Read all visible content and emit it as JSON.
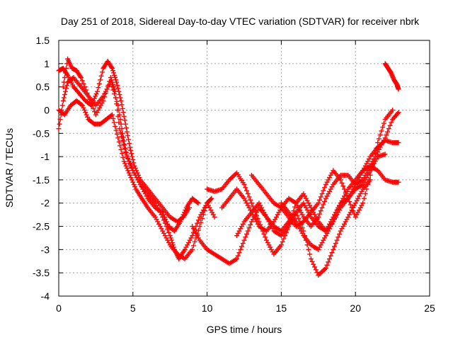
{
  "chart_data": {
    "type": "scatter",
    "title": "Day 251 of 2018, Sidereal Day-to-day VTEC variation (SDTVAR) for receiver nbrk",
    "xlabel": "GPS time / hours",
    "ylabel": "SDTVAR / TECUs",
    "xlim": [
      0,
      25
    ],
    "ylim": [
      -4,
      1.5
    ],
    "xticks": [
      0,
      5,
      10,
      15,
      20,
      25
    ],
    "xtick_labels": [
      "0",
      "5",
      "10",
      "15",
      "20",
      "25"
    ],
    "yticks": [
      -4,
      -3.5,
      -3,
      -2.5,
      -2,
      -1.5,
      -1,
      -0.5,
      0,
      0.5,
      1,
      1.5
    ],
    "ytick_labels": [
      "-4",
      "-3.5",
      "-3",
      "-2.5",
      "-2",
      "-1.5",
      "-1",
      "-0.5",
      "0",
      "0.5",
      "1",
      "1.5"
    ],
    "grid": true,
    "marker": "+",
    "color": "#ff0000",
    "series": [
      {
        "x": [
          0.0,
          0.3,
          0.6,
          1.0,
          1.4,
          1.8,
          2.2,
          2.6,
          3.0,
          3.3,
          3.6,
          3.9,
          4.2,
          4.5,
          4.8,
          5.1,
          5.5,
          6.0,
          6.5,
          7.0,
          7.5,
          8.0,
          8.4,
          8.8
        ],
        "y": [
          0.85,
          0.9,
          0.75,
          0.5,
          0.35,
          0.2,
          0.1,
          0.4,
          0.9,
          1.05,
          0.9,
          0.6,
          0.2,
          -0.3,
          -0.8,
          -1.2,
          -1.5,
          -1.7,
          -1.9,
          -2.1,
          -2.3,
          -2.4,
          -2.3,
          -2.1
        ]
      },
      {
        "x": [
          0.0,
          0.3,
          0.6,
          1.0,
          1.5,
          2.0,
          2.5,
          3.0,
          3.5,
          4.0,
          4.3,
          4.6,
          5.0,
          5.5,
          6.0,
          6.5,
          7.0,
          7.5,
          7.8,
          8.1,
          8.5,
          9.0,
          9.5,
          10.0,
          10.5
        ],
        "y": [
          -0.4,
          0.2,
          0.6,
          0.7,
          0.5,
          0.3,
          0.1,
          0.3,
          0.6,
          0.1,
          -0.5,
          -1.0,
          -1.3,
          -1.6,
          -1.8,
          -2.0,
          -2.3,
          -2.7,
          -3.0,
          -3.2,
          -3.0,
          -2.7,
          -2.3,
          -2.0,
          -2.3
        ]
      },
      {
        "x": [
          0.0,
          0.4,
          0.8,
          1.2,
          1.6,
          2.0,
          2.4,
          2.8,
          3.2,
          3.6,
          4.0,
          4.4,
          4.8,
          5.2,
          5.6,
          6.0,
          6.5,
          7.0,
          7.5,
          8.0,
          8.5,
          9.0,
          9.5,
          10.0,
          10.3
        ],
        "y": [
          0.0,
          -0.1,
          0.1,
          0.2,
          0.1,
          -0.2,
          -0.3,
          -0.3,
          -0.2,
          -0.1,
          -0.6,
          -1.1,
          -1.4,
          -1.7,
          -1.9,
          -2.1,
          -2.3,
          -2.6,
          -2.9,
          -3.1,
          -3.2,
          -3.0,
          -2.5,
          -2.0,
          -1.9
        ]
      },
      {
        "x": [
          0.3,
          0.6,
          0.9,
          1.2,
          1.5,
          2.0,
          2.5,
          3.0,
          3.5,
          3.8,
          4.1,
          4.5,
          5.0,
          5.5,
          6.0,
          6.5,
          7.0,
          7.4,
          7.8,
          8.2,
          8.6,
          9.0,
          9.4
        ],
        "y": [
          0.5,
          1.1,
          0.9,
          0.85,
          0.7,
          0.3,
          -0.1,
          0.2,
          0.7,
          0.4,
          -0.4,
          -0.9,
          -1.3,
          -1.6,
          -1.9,
          -2.1,
          -2.2,
          -2.5,
          -2.6,
          -2.4,
          -2.1,
          -1.9,
          -2.0
        ]
      },
      {
        "x": [
          9.0,
          9.5,
          10.0,
          10.5,
          11.0,
          11.5,
          12.0,
          12.5,
          13.0,
          13.5,
          14.0,
          14.5,
          15.0,
          15.5,
          16.0,
          16.5,
          17.0,
          17.5,
          18.0,
          18.5,
          19.0,
          19.5,
          20.0,
          20.5,
          21.0
        ],
        "y": [
          -2.5,
          -2.8,
          -3.0,
          -3.1,
          -3.2,
          -3.3,
          -3.2,
          -2.8,
          -2.4,
          -2.1,
          -2.3,
          -2.5,
          -2.6,
          -2.4,
          -2.2,
          -2.6,
          -3.2,
          -3.55,
          -3.4,
          -3.0,
          -2.6,
          -2.3,
          -2.0,
          -1.7,
          -1.5
        ]
      },
      {
        "x": [
          10.0,
          10.5,
          11.0,
          11.5,
          12.0,
          12.5,
          13.0,
          13.5,
          14.0,
          14.5,
          15.0,
          15.5,
          16.0,
          16.5,
          17.0,
          17.5,
          18.0,
          18.5,
          19.0,
          19.5,
          20.0,
          20.5,
          21.0,
          21.5,
          22.0,
          22.5,
          22.9
        ],
        "y": [
          -1.7,
          -1.75,
          -1.7,
          -1.5,
          -1.35,
          -1.6,
          -2.0,
          -2.4,
          -2.8,
          -3.1,
          -2.9,
          -2.5,
          -2.0,
          -1.8,
          -2.1,
          -2.4,
          -2.6,
          -2.4,
          -2.0,
          -1.7,
          -1.5,
          -1.3,
          -1.2,
          -1.3,
          -1.5,
          -1.55,
          -1.55
        ]
      },
      {
        "x": [
          11.0,
          11.5,
          12.0,
          12.5,
          13.0,
          13.5,
          14.0,
          14.5,
          15.0,
          15.5,
          16.0,
          16.5,
          17.0,
          17.5,
          18.0,
          18.5,
          19.0,
          19.5,
          20.0,
          20.5,
          21.0,
          21.5,
          22.0,
          22.5,
          22.9
        ],
        "y": [
          -2.1,
          -1.9,
          -1.7,
          -1.9,
          -2.2,
          -2.5,
          -2.6,
          -2.4,
          -2.1,
          -1.9,
          -2.0,
          -2.3,
          -2.5,
          -2.3,
          -1.9,
          -1.6,
          -1.4,
          -1.4,
          -1.6,
          -1.5,
          -1.2,
          -0.9,
          -0.6,
          -0.2,
          -0.05
        ]
      },
      {
        "x": [
          12.0,
          12.5,
          13.0,
          13.5,
          14.0,
          14.5,
          15.0,
          15.5,
          16.0,
          16.5,
          17.0,
          17.5,
          18.0,
          18.5,
          19.0,
          19.5,
          20.0,
          20.5,
          21.0,
          21.5,
          22.0,
          22.5,
          22.9
        ],
        "y": [
          -2.7,
          -2.4,
          -2.2,
          -2.0,
          -2.3,
          -2.6,
          -2.7,
          -2.5,
          -2.2,
          -2.0,
          -2.3,
          -2.5,
          -2.6,
          -2.3,
          -2.0,
          -1.9,
          -1.6,
          -1.3,
          -1.0,
          -0.8,
          -0.65,
          -0.7,
          -0.7
        ]
      },
      {
        "x": [
          13.0,
          13.5,
          14.0,
          14.5,
          15.0,
          15.5,
          16.0,
          16.5,
          17.0,
          17.5,
          18.0,
          18.5,
          19.0,
          19.5,
          20.0,
          20.5,
          21.0,
          21.5,
          22.0,
          22.5
        ],
        "y": [
          -1.4,
          -1.6,
          -1.8,
          -2.0,
          -2.1,
          -2.3,
          -2.5,
          -2.4,
          -2.2,
          -2.0,
          -1.6,
          -1.3,
          -1.5,
          -1.9,
          -2.3,
          -2.0,
          -1.4,
          -0.7,
          -0.2,
          0.0
        ]
      },
      {
        "x": [
          15.0,
          15.5,
          16.0,
          16.5,
          17.0,
          17.5,
          18.0,
          18.5,
          19.0,
          19.5,
          20.0,
          20.5,
          21.0,
          21.5,
          22.0
        ],
        "y": [
          -2.0,
          -2.2,
          -2.4,
          -2.7,
          -2.9,
          -3.0,
          -2.7,
          -2.4,
          -2.1,
          -1.9,
          -1.7,
          -1.6,
          -1.3,
          -1.0,
          -0.95
        ]
      },
      {
        "x": [
          22.0,
          22.2,
          22.4,
          22.6,
          22.8,
          22.9
        ],
        "y": [
          1.0,
          0.9,
          0.8,
          0.65,
          0.55,
          0.45
        ]
      }
    ]
  }
}
